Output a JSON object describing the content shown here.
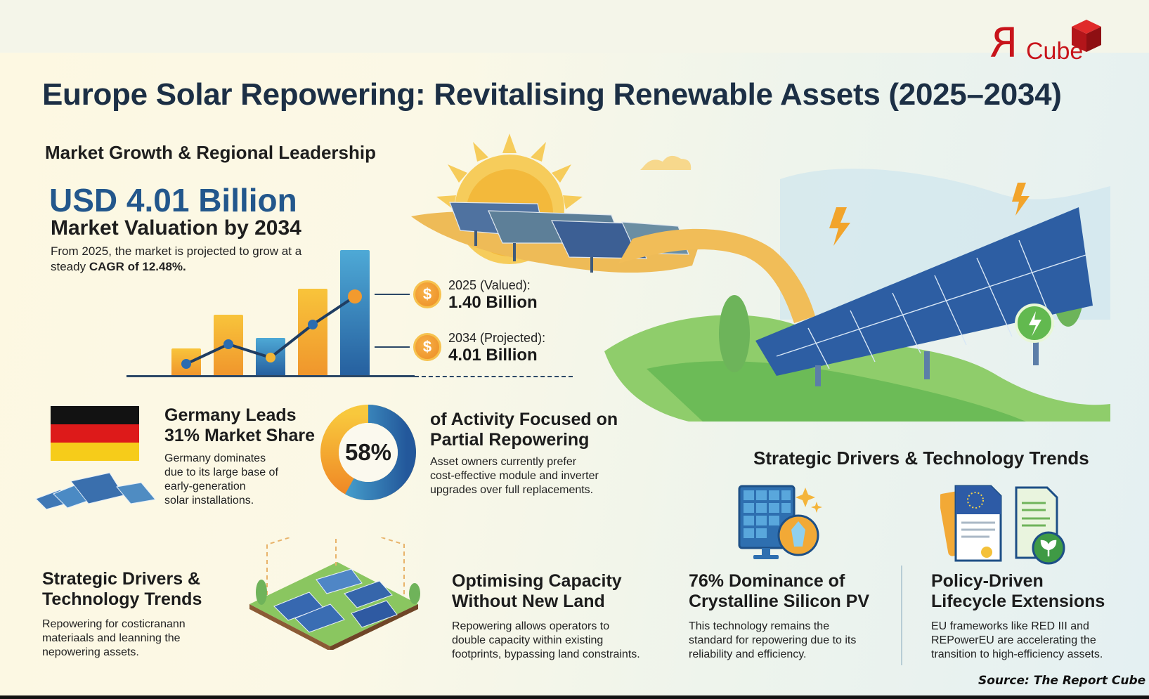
{
  "header": {
    "logo": {
      "mark": "R",
      "text": "Cube",
      "color": "#c8141b"
    },
    "title": "Europe Solar Repowering: Revitalising Renewable Assets (2025–2034)"
  },
  "market": {
    "subhead": "Market Growth & Regional Leadership",
    "headline_value": "USD 4.01 Billion",
    "headline_label": "Market Valuation by 2034",
    "desc_prefix": "From 2025, the market is projected to grow at a steady ",
    "desc_bold": "CAGR of 12.48%."
  },
  "chart_data": {
    "type": "bar",
    "title": "",
    "categories": [
      "1",
      "2",
      "3",
      "4",
      "5"
    ],
    "series": [
      {
        "name": "bars",
        "values": [
          38,
          86,
          53,
          123,
          178
        ]
      },
      {
        "name": "trend-line",
        "values": [
          16,
          44,
          25,
          72,
          112
        ]
      }
    ],
    "bar_colors": [
      "#f3a531",
      "#f3a531",
      "#3a86c2",
      "#f3a531",
      "#2f78b8"
    ],
    "annotations": [
      {
        "label": "2025 (Valued):",
        "value": "1.40 Billion"
      },
      {
        "label": "2034 (Projected):",
        "value": "4.01 Billion"
      }
    ],
    "xlabel": "",
    "ylabel": "",
    "grid": false
  },
  "callouts": [
    {
      "label": "2025 (Valued):",
      "value": "1.40 Billion",
      "icon": "dollar-coin-icon"
    },
    {
      "label": "2034 (Projected):",
      "value": "4.01 Billion",
      "icon": "dollar-coin-icon"
    }
  ],
  "germany": {
    "title_line1": "Germany Leads",
    "title_line2": "31% Market Share",
    "desc": [
      "Germany dominates",
      "due to its large base of",
      "early-generation",
      "solar installations."
    ],
    "flag_colors": [
      "#121212",
      "#dd1a1a",
      "#f6cc1a"
    ]
  },
  "partial": {
    "percent": "58%",
    "title_line1": "of Activity Focused on",
    "title_line2": "Partial Repowering",
    "desc": [
      "Asset owners currently prefer",
      "cost-effective module and inverter",
      "upgrades over full replacements."
    ]
  },
  "strategic_section_title": "Strategic Drivers & Technology Trends",
  "cards": [
    {
      "title_line1": "Strategic Drivers &",
      "title_line2": "Technology Trends",
      "desc": [
        "Repowering for costicranann",
        "materiaals and leanning the",
        "nepowering assets."
      ]
    },
    {
      "title_line1": "Optimising Capacity",
      "title_line2": "Without New Land",
      "desc": [
        "Repowering allows operators to",
        "double capacity within existing",
        "footprints, bypassing land constraints."
      ]
    },
    {
      "title_line1": "76% Dominance of",
      "title_line2": "Crystalline Silicon PV",
      "desc": [
        "This technology remains the",
        "standard for repowering due to its",
        "reliability and efficiency."
      ]
    },
    {
      "title_line1": "Policy-Driven",
      "title_line2": "Lifecycle Extensions",
      "desc": [
        "EU frameworks like RED III and",
        "REPowerEU are accelerating the",
        "transition to high-efficiency assets."
      ]
    }
  ],
  "footer": {
    "source": "Source: The Report Cube"
  }
}
